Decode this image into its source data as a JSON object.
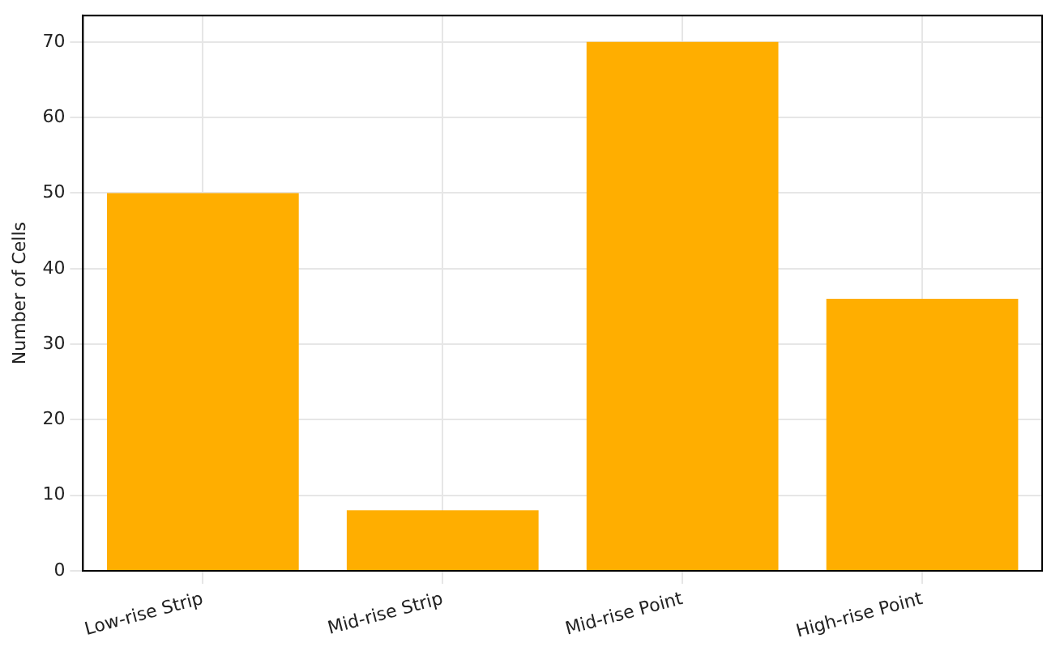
{
  "chart_data": {
    "type": "bar",
    "ylabel": "Number of Cells",
    "categories": [
      "Low-rise Strip",
      "Mid-rise Strip",
      "Mid-rise Point",
      "High-rise Point"
    ],
    "values": [
      50,
      8,
      70,
      36
    ],
    "color": "#ffae00",
    "ylim": [
      0,
      73.5
    ],
    "yticks": [
      0,
      10,
      20,
      30,
      40,
      50,
      60,
      70
    ],
    "grid": true
  }
}
